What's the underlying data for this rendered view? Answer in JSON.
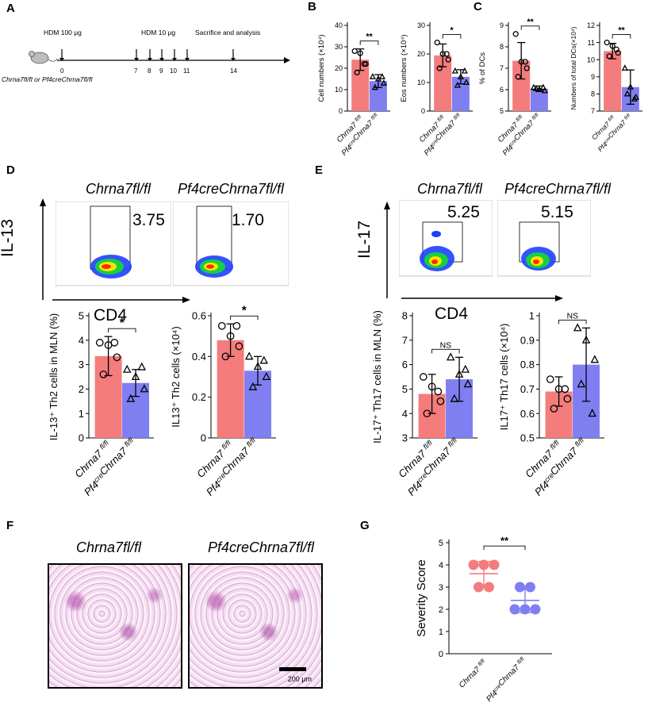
{
  "panel_labels": [
    "A",
    "B",
    "C",
    "D",
    "E",
    "F",
    "G"
  ],
  "timeline": {
    "hdm_high": "HDM 100 μg",
    "hdm_low": "HDM 10 μg",
    "end": "Sacrifice and analysis",
    "days": [
      "0",
      "7",
      "8",
      "9",
      "10",
      "11",
      "14"
    ],
    "mice": "Chrna7fl/fl or Pf4creChrna7fl/fl"
  },
  "groups": {
    "ctrl": "Chrna7fl/fl",
    "ko": "Pf4creChrna7fl/fl",
    "ctrl_color": "#f47c7c",
    "ko_color": "#7f7ff2"
  },
  "flow": {
    "D": {
      "ylabel": "IL-13",
      "xlabel": "CD4",
      "values": [
        "3.75",
        "1.70"
      ]
    },
    "E": {
      "ylabel": "IL-17",
      "xlabel": "CD4",
      "values": [
        "5.25",
        "5.15"
      ]
    }
  },
  "histology": {
    "scale": "200 μm"
  },
  "chart_data": [
    {
      "id": "B1",
      "type": "bar",
      "ylabel": "Cell numbers (×10⁴)",
      "ylim": [
        0,
        40
      ],
      "ticks": [
        0,
        10,
        20,
        30,
        40
      ],
      "values": [
        24,
        14
      ],
      "err": [
        5,
        3
      ],
      "sig": "**",
      "points": [
        [
          28,
          27,
          22,
          18,
          22
        ],
        [
          16,
          15,
          13,
          11,
          16
        ]
      ]
    },
    {
      "id": "B2",
      "type": "bar",
      "ylabel": "Eos numbers (×10⁴)",
      "ylim": [
        0,
        30
      ],
      "ticks": [
        0,
        10,
        20,
        30
      ],
      "values": [
        19.5,
        12
      ],
      "err": [
        4,
        2.5
      ],
      "sig": "*",
      "points": [
        [
          24,
          20,
          18,
          15,
          20
        ],
        [
          14,
          12,
          10,
          9,
          14
        ]
      ]
    },
    {
      "id": "C1",
      "type": "bar",
      "ylabel": "% of DCs",
      "ylim": [
        5,
        9
      ],
      "ticks": [
        5,
        6,
        7,
        8,
        9
      ],
      "values": [
        7.35,
        6.05
      ],
      "err": [
        0.85,
        0.12
      ],
      "sig": "**",
      "points": [
        [
          8.6,
          7.3,
          7.0,
          6.6,
          7.3
        ],
        [
          6.1,
          6.0,
          5.95,
          6.05,
          6.1
        ]
      ]
    },
    {
      "id": "C2",
      "type": "bar",
      "ylabel": "Numbers of total DCs(×10⁴)",
      "ylim": [
        7,
        12
      ],
      "ticks": [
        7,
        8,
        9,
        10,
        11,
        12
      ],
      "values": [
        10.5,
        8.4
      ],
      "err": [
        0.45,
        1.0
      ],
      "sig": "**",
      "points": [
        [
          11.0,
          10.8,
          10.4,
          10.2,
          10.6
        ],
        [
          9.5,
          8.4,
          7.8,
          8.0,
          7.7
        ]
      ]
    },
    {
      "id": "D1",
      "type": "bar",
      "ylabel": "IL-13⁺ Th2 cells in MLN (%)",
      "ylim": [
        0,
        5
      ],
      "ticks": [
        0,
        1,
        2,
        3,
        4,
        5
      ],
      "values": [
        3.35,
        2.25
      ],
      "err": [
        0.8,
        0.55
      ],
      "sig": "*",
      "points": [
        [
          3.9,
          3.8,
          3.3,
          2.6,
          3.9
        ],
        [
          2.8,
          2.5,
          2.0,
          1.6,
          2.9
        ]
      ]
    },
    {
      "id": "D2",
      "type": "bar",
      "ylabel": "IL13⁺ Th2 cells (×10⁴)",
      "ylim": [
        0,
        0.6
      ],
      "ticks": [
        0,
        0.2,
        0.4,
        0.6
      ],
      "values": [
        0.48,
        0.33
      ],
      "err": [
        0.08,
        0.07
      ],
      "sig": "*",
      "points": [
        [
          0.55,
          0.5,
          0.45,
          0.4,
          0.55
        ],
        [
          0.4,
          0.35,
          0.3,
          0.25,
          0.38
        ]
      ]
    },
    {
      "id": "E1",
      "type": "bar",
      "ylabel": "IL-17⁺ Th17 cells in MLN (%)",
      "ylim": [
        3,
        8
      ],
      "ticks": [
        3,
        4,
        5,
        6,
        7,
        8
      ],
      "values": [
        4.8,
        5.4
      ],
      "err": [
        0.8,
        0.9
      ],
      "sig": "NS",
      "points": [
        [
          5.5,
          5.1,
          4.5,
          4.0,
          4.9
        ],
        [
          6.3,
          5.6,
          5.2,
          4.6,
          5.8
        ]
      ]
    },
    {
      "id": "E2",
      "type": "bar",
      "ylabel": "IL17⁺ Th17 cells (×10⁴)",
      "ylim": [
        0.5,
        1.0
      ],
      "ticks": [
        0.5,
        0.6,
        0.7,
        0.8,
        0.9,
        1.0
      ],
      "values": [
        0.69,
        0.8
      ],
      "err": [
        0.06,
        0.15
      ],
      "sig": "NS",
      "points": [
        [
          0.74,
          0.7,
          0.66,
          0.62,
          0.7
        ],
        [
          0.95,
          0.9,
          0.82,
          0.72,
          0.6
        ]
      ]
    },
    {
      "id": "G",
      "type": "scatter",
      "ylabel": "Severity Score",
      "ylim": [
        0,
        5
      ],
      "ticks": [
        0,
        1,
        2,
        3,
        4,
        5
      ],
      "mean": [
        3.6,
        2.4
      ],
      "err": [
        0.55,
        0.55
      ],
      "sig": "**",
      "points": [
        [
          4,
          4,
          4,
          3,
          3
        ],
        [
          2,
          2,
          2,
          3,
          3
        ]
      ]
    }
  ]
}
